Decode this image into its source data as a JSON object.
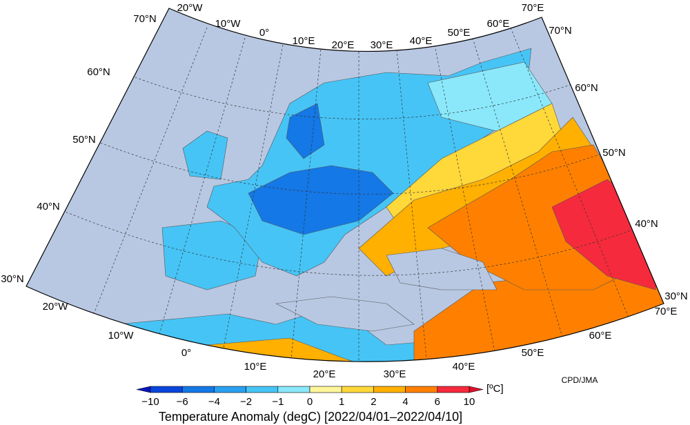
{
  "map": {
    "lon_labels_top": [
      "20°W",
      "10°W",
      "0°",
      "10°E",
      "20°E",
      "30°E",
      "40°E",
      "50°E",
      "60°E",
      "70°E"
    ],
    "lon_labels_bottom": [
      "20°W",
      "10°W",
      "0°",
      "10°E",
      "20°E",
      "30°E",
      "40°E",
      "50°E",
      "60°E",
      "70°E"
    ],
    "lat_labels_left": [
      "70°N",
      "60°N",
      "50°N",
      "40°N",
      "30°N"
    ],
    "lat_labels_right": [
      "70°N",
      "60°N",
      "50°N",
      "40°N",
      "30°N"
    ],
    "credit": "CPD/JMA"
  },
  "colorbar": {
    "ticks": [
      "−10",
      "−6",
      "−4",
      "−2",
      "−1",
      "0",
      "1",
      "2",
      "4",
      "6",
      "10"
    ],
    "unit": "[ºC]",
    "low_color": "#0a14c0",
    "colors": [
      "#0a46dc",
      "#1478e6",
      "#2aa0f0",
      "#46c4f6",
      "#8ae8fa",
      "#fff59a",
      "#ffd83a",
      "#ffb000",
      "#ff8000",
      "#f52a3c"
    ],
    "high_color": "#e0102a"
  },
  "title": "Temperature Anomaly (degC) [2022/04/01–2022/04/10]"
}
